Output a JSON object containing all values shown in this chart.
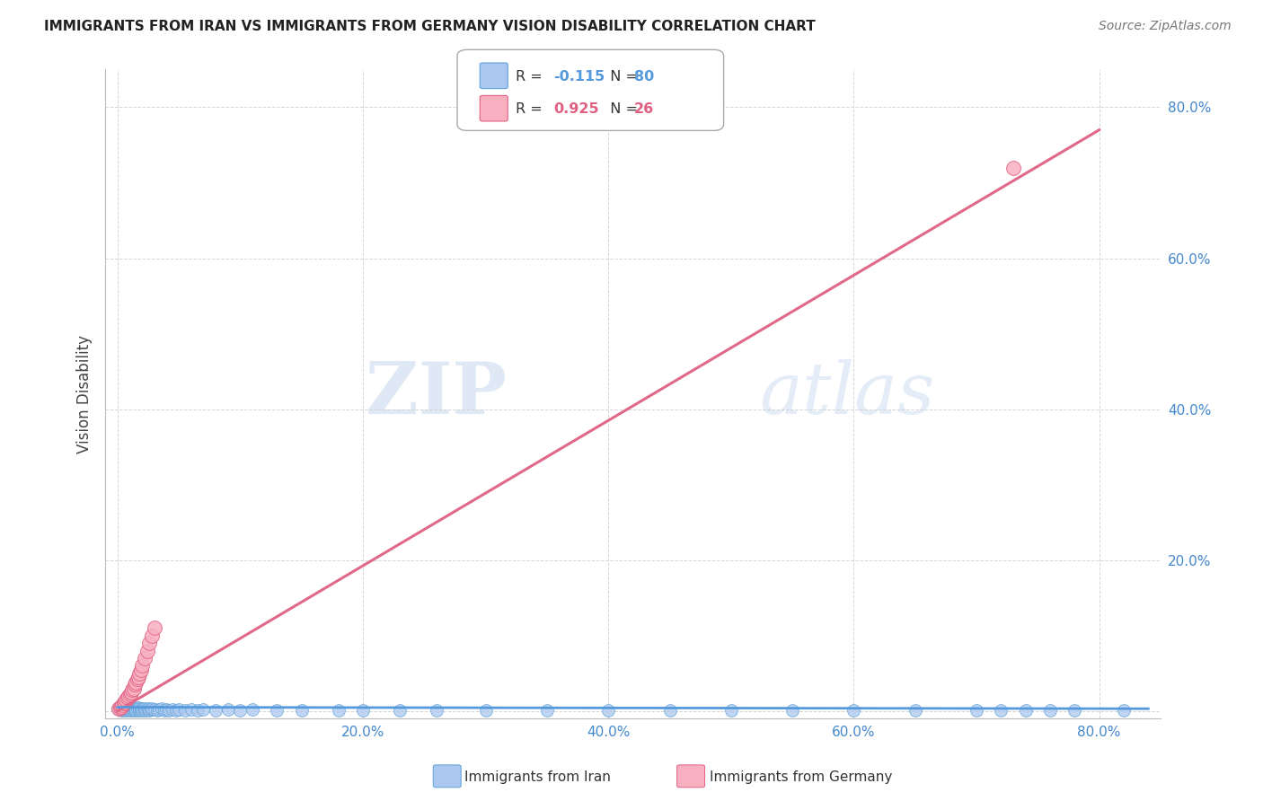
{
  "title": "IMMIGRANTS FROM IRAN VS IMMIGRANTS FROM GERMANY VISION DISABILITY CORRELATION CHART",
  "source": "Source: ZipAtlas.com",
  "ylabel": "Vision Disability",
  "x_ticks": [
    0.0,
    0.2,
    0.4,
    0.6,
    0.8
  ],
  "y_ticks": [
    0.0,
    0.2,
    0.4,
    0.6,
    0.8
  ],
  "x_tick_labels": [
    "0.0%",
    "20.0%",
    "40.0%",
    "60.0%",
    "80.0%"
  ],
  "y_tick_labels": [
    "",
    "20.0%",
    "40.0%",
    "60.0%",
    "80.0%"
  ],
  "xlim": [
    -0.01,
    0.85
  ],
  "ylim": [
    -0.01,
    0.85
  ],
  "iran_R": -0.115,
  "iran_N": 80,
  "germany_R": 0.925,
  "germany_N": 26,
  "iran_color": "#aac8f0",
  "iran_color_dark": "#5a9fd4",
  "germany_color": "#f8b0c0",
  "germany_color_dark": "#e06080",
  "iran_line_color": "#5599dd",
  "germany_line_color": "#e06888",
  "legend_label_iran": "Immigrants from Iran",
  "legend_label_germany": "Immigrants from Germany",
  "background_color": "#ffffff",
  "grid_color": "#cccccc",
  "watermark_zip": "ZIP",
  "watermark_atlas": "atlas",
  "iran_scatter_x": [
    0.0,
    0.001,
    0.002,
    0.003,
    0.003,
    0.004,
    0.004,
    0.005,
    0.005,
    0.006,
    0.006,
    0.007,
    0.007,
    0.008,
    0.008,
    0.009,
    0.009,
    0.01,
    0.01,
    0.011,
    0.011,
    0.012,
    0.013,
    0.013,
    0.014,
    0.015,
    0.015,
    0.016,
    0.017,
    0.018,
    0.018,
    0.019,
    0.02,
    0.02,
    0.021,
    0.022,
    0.023,
    0.024,
    0.025,
    0.026,
    0.027,
    0.028,
    0.03,
    0.032,
    0.034,
    0.036,
    0.038,
    0.04,
    0.042,
    0.045,
    0.048,
    0.05,
    0.055,
    0.06,
    0.065,
    0.07,
    0.08,
    0.09,
    0.1,
    0.11,
    0.13,
    0.15,
    0.18,
    0.2,
    0.23,
    0.26,
    0.3,
    0.35,
    0.4,
    0.45,
    0.5,
    0.55,
    0.6,
    0.65,
    0.7,
    0.72,
    0.74,
    0.76,
    0.78,
    0.82
  ],
  "iran_scatter_y": [
    0.003,
    0.002,
    0.004,
    0.001,
    0.005,
    0.003,
    0.002,
    0.004,
    0.001,
    0.003,
    0.005,
    0.002,
    0.004,
    0.001,
    0.003,
    0.004,
    0.002,
    0.003,
    0.001,
    0.004,
    0.002,
    0.003,
    0.001,
    0.004,
    0.002,
    0.003,
    0.001,
    0.002,
    0.004,
    0.001,
    0.003,
    0.002,
    0.003,
    0.001,
    0.002,
    0.003,
    0.001,
    0.002,
    0.003,
    0.001,
    0.002,
    0.003,
    0.002,
    0.001,
    0.002,
    0.003,
    0.001,
    0.002,
    0.001,
    0.002,
    0.001,
    0.002,
    0.001,
    0.002,
    0.001,
    0.002,
    0.001,
    0.002,
    0.001,
    0.002,
    0.001,
    0.001,
    0.001,
    0.001,
    0.001,
    0.001,
    0.001,
    0.001,
    0.001,
    0.001,
    0.001,
    0.001,
    0.001,
    0.001,
    0.001,
    0.001,
    0.001,
    0.001,
    0.001,
    0.001
  ],
  "germany_scatter_x": [
    0.001,
    0.002,
    0.003,
    0.004,
    0.005,
    0.006,
    0.007,
    0.008,
    0.009,
    0.01,
    0.011,
    0.012,
    0.013,
    0.014,
    0.015,
    0.016,
    0.017,
    0.018,
    0.019,
    0.02,
    0.022,
    0.024,
    0.026,
    0.028,
    0.03,
    0.73
  ],
  "germany_scatter_y": [
    0.003,
    0.005,
    0.006,
    0.008,
    0.01,
    0.012,
    0.015,
    0.017,
    0.02,
    0.022,
    0.025,
    0.028,
    0.03,
    0.035,
    0.038,
    0.042,
    0.045,
    0.05,
    0.055,
    0.06,
    0.07,
    0.08,
    0.09,
    0.1,
    0.11,
    0.72
  ],
  "germany_line_x": [
    0.0,
    0.8
  ],
  "germany_line_y": [
    0.0,
    0.77
  ],
  "iran_line_x": [
    0.0,
    0.84
  ],
  "iran_line_y": [
    0.005,
    0.003
  ]
}
